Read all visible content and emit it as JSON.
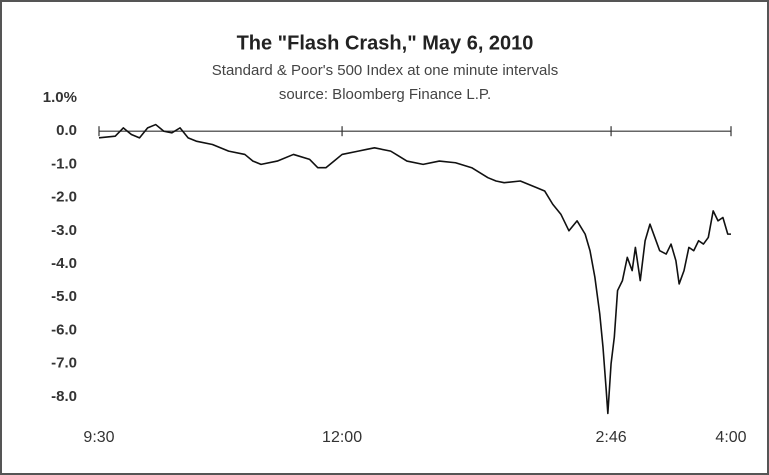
{
  "chart_data": {
    "type": "line",
    "title": "The \"Flash Crash,\" May 6, 2010",
    "subtitle": "Standard & Poor's 500 Index at one minute intervals",
    "source": "source: Bloomberg Finance L.P.",
    "x": [
      0,
      10,
      15,
      20,
      25,
      30,
      35,
      40,
      45,
      50,
      55,
      60,
      70,
      80,
      90,
      95,
      100,
      110,
      120,
      130,
      135,
      140,
      145,
      150,
      160,
      165,
      170,
      180,
      185,
      190,
      200,
      210,
      220,
      230,
      240,
      245,
      250,
      260,
      270,
      275,
      280,
      285,
      290,
      295,
      300,
      303,
      306,
      309,
      311,
      313,
      314,
      316,
      318,
      320,
      323,
      326,
      329,
      331,
      334,
      337,
      340,
      343,
      346,
      350,
      353,
      356,
      358,
      361,
      364,
      367,
      370,
      373,
      376,
      379,
      382,
      385,
      388,
      390
    ],
    "values": [
      -0.2,
      -0.15,
      0.1,
      -0.1,
      -0.2,
      0.1,
      0.2,
      0.0,
      -0.05,
      0.1,
      -0.2,
      -0.3,
      -0.4,
      -0.6,
      -0.7,
      -0.9,
      -1.0,
      -0.9,
      -0.7,
      -0.85,
      -1.1,
      -1.1,
      -0.9,
      -0.7,
      -0.6,
      -0.55,
      -0.5,
      -0.6,
      -0.75,
      -0.9,
      -1.0,
      -0.9,
      -0.95,
      -1.1,
      -1.4,
      -1.5,
      -1.55,
      -1.5,
      -1.7,
      -1.8,
      -2.2,
      -2.5,
      -3.0,
      -2.7,
      -3.1,
      -3.6,
      -4.4,
      -5.5,
      -6.5,
      -7.8,
      -8.5,
      -7.0,
      -6.2,
      -4.8,
      -4.5,
      -3.8,
      -4.2,
      -3.5,
      -4.5,
      -3.3,
      -2.8,
      -3.2,
      -3.6,
      -3.7,
      -3.4,
      -3.9,
      -4.6,
      -4.2,
      -3.5,
      -3.6,
      -3.3,
      -3.4,
      -3.2,
      -2.4,
      -2.7,
      -2.6,
      -3.1,
      -3.1
    ],
    "color": "#111111",
    "xlim": [
      0,
      390
    ],
    "xticks": [
      {
        "value": 0,
        "label": "9:30"
      },
      {
        "value": 150,
        "label": "12:00"
      },
      {
        "value": 316,
        "label": "2:46"
      },
      {
        "value": 390,
        "label": "4:00"
      }
    ],
    "ylim": [
      -9,
      1
    ],
    "yticks": [
      {
        "value": 1,
        "label": "1.0%"
      },
      {
        "value": 0,
        "label": "0.0"
      },
      {
        "value": -1,
        "label": "-1.0"
      },
      {
        "value": -2,
        "label": "-2.0"
      },
      {
        "value": -3,
        "label": "-3.0"
      },
      {
        "value": -4,
        "label": "-4.0"
      },
      {
        "value": -5,
        "label": "-5.0"
      },
      {
        "value": -6,
        "label": "-6.0"
      },
      {
        "value": -7,
        "label": "-7.0"
      },
      {
        "value": -8,
        "label": "-8.0"
      }
    ],
    "grid": false
  }
}
